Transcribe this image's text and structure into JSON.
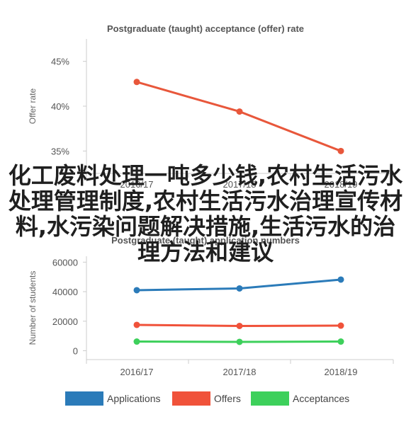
{
  "colors": {
    "offer_rate_line": "#E8573B",
    "applications": "#2B7BB9",
    "offers": "#F0523A",
    "acceptances": "#3DD05B",
    "text": "#555555",
    "axis": "#cccccc"
  },
  "overlay_text": "化工废料处理一吨多少钱,农村生活污水处理管理制度,农村生活污水治理宣传材料,水污染问题解决措施,生活污水的治理方法和建议",
  "chart_data": [
    {
      "type": "line",
      "title": "Postgraduate (taught) acceptance (offer) rate",
      "ylabel": "Offer rate",
      "xlabel": "",
      "categories": [
        "2016/17",
        "2017/18",
        "2018/19"
      ],
      "series": [
        {
          "values": [
            42.7,
            39.4,
            35.0
          ]
        }
      ],
      "y_ticks": [
        "45%",
        "40%",
        "35%"
      ],
      "y_tick_values": [
        45,
        40,
        35
      ],
      "ylim": [
        32.5,
        47.5
      ],
      "grid": false,
      "legend": "none"
    },
    {
      "type": "line",
      "title": "Postgraduate (taught) application numbers",
      "ylabel": "Number of students",
      "xlabel": "",
      "categories": [
        "2016/17",
        "2017/18",
        "2018/19"
      ],
      "series": [
        {
          "name": "Applications",
          "values": [
            41000,
            42200,
            48200
          ]
        },
        {
          "name": "Offers",
          "values": [
            17500,
            16800,
            17000
          ]
        },
        {
          "name": "Acceptances",
          "values": [
            6200,
            6000,
            6200
          ]
        }
      ],
      "y_ticks": [
        "60000",
        "40000",
        "20000",
        "0"
      ],
      "y_tick_values": [
        60000,
        40000,
        20000,
        0
      ],
      "ylim": [
        -6000,
        64000
      ],
      "grid": false,
      "legend": "bottom"
    }
  ]
}
